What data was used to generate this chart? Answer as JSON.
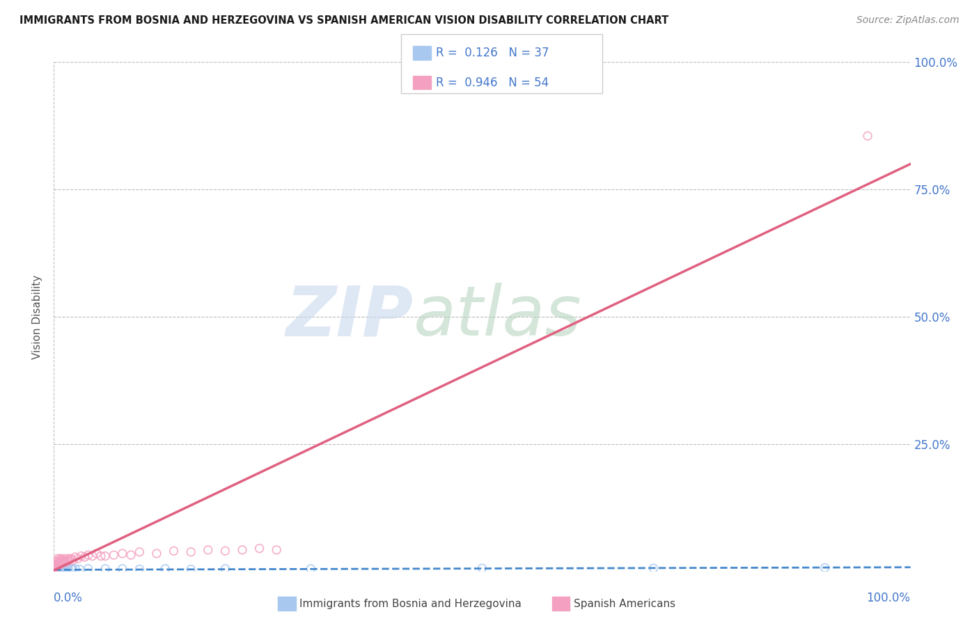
{
  "title": "IMMIGRANTS FROM BOSNIA AND HERZEGOVINA VS SPANISH AMERICAN VISION DISABILITY CORRELATION CHART",
  "source": "Source: ZipAtlas.com",
  "ylabel": "Vision Disability",
  "yticks": [
    0.0,
    0.25,
    0.5,
    0.75,
    1.0
  ],
  "ytick_labels": [
    "",
    "25.0%",
    "50.0%",
    "75.0%",
    "100.0%"
  ],
  "xlim": [
    0.0,
    1.0
  ],
  "ylim": [
    0.0,
    1.0
  ],
  "blue_scatter_x": [
    0.001,
    0.002,
    0.002,
    0.003,
    0.003,
    0.004,
    0.004,
    0.005,
    0.005,
    0.006,
    0.006,
    0.007,
    0.007,
    0.008,
    0.008,
    0.009,
    0.01,
    0.011,
    0.012,
    0.013,
    0.015,
    0.017,
    0.02,
    0.022,
    0.025,
    0.03,
    0.04,
    0.06,
    0.08,
    0.1,
    0.13,
    0.16,
    0.2,
    0.3,
    0.5,
    0.7,
    0.9
  ],
  "blue_scatter_y": [
    0.003,
    0.002,
    0.005,
    0.004,
    0.006,
    0.003,
    0.005,
    0.004,
    0.006,
    0.003,
    0.005,
    0.004,
    0.006,
    0.003,
    0.005,
    0.004,
    0.005,
    0.004,
    0.005,
    0.004,
    0.005,
    0.004,
    0.005,
    0.004,
    0.005,
    0.004,
    0.005,
    0.005,
    0.005,
    0.004,
    0.005,
    0.004,
    0.005,
    0.005,
    0.006,
    0.006,
    0.007
  ],
  "pink_scatter_x": [
    0.001,
    0.001,
    0.002,
    0.002,
    0.003,
    0.003,
    0.003,
    0.004,
    0.004,
    0.004,
    0.005,
    0.005,
    0.005,
    0.006,
    0.006,
    0.007,
    0.007,
    0.008,
    0.008,
    0.009,
    0.01,
    0.01,
    0.011,
    0.012,
    0.013,
    0.014,
    0.015,
    0.016,
    0.017,
    0.018,
    0.02,
    0.022,
    0.025,
    0.028,
    0.032,
    0.036,
    0.04,
    0.045,
    0.05,
    0.055,
    0.06,
    0.07,
    0.08,
    0.09,
    0.1,
    0.12,
    0.14,
    0.16,
    0.18,
    0.2,
    0.22,
    0.24,
    0.26,
    0.95
  ],
  "pink_scatter_y": [
    0.005,
    0.01,
    0.008,
    0.012,
    0.008,
    0.015,
    0.02,
    0.01,
    0.015,
    0.02,
    0.01,
    0.015,
    0.025,
    0.012,
    0.018,
    0.015,
    0.022,
    0.018,
    0.025,
    0.015,
    0.018,
    0.022,
    0.02,
    0.025,
    0.02,
    0.018,
    0.022,
    0.02,
    0.025,
    0.022,
    0.025,
    0.022,
    0.028,
    0.025,
    0.03,
    0.028,
    0.032,
    0.03,
    0.035,
    0.03,
    0.03,
    0.032,
    0.035,
    0.032,
    0.038,
    0.035,
    0.04,
    0.038,
    0.042,
    0.04,
    0.042,
    0.045,
    0.042,
    0.855
  ],
  "blue_line_x": [
    0.0,
    1.0
  ],
  "blue_line_y": [
    0.003,
    0.008
  ],
  "pink_line_x": [
    0.0,
    1.0
  ],
  "pink_line_y": [
    0.002,
    0.8
  ],
  "title_color": "#1a1a1a",
  "source_color": "#888888",
  "axis_color": "#4477cc",
  "scatter_blue_color": "#a8c8f0",
  "scatter_pink_color": "#f4a0c0",
  "line_blue_color": "#4488cc",
  "line_pink_color": "#e06080",
  "grid_color": "#bbbbbb",
  "watermark_zip_color": "#c8d8ee",
  "watermark_atlas_color": "#b8d4c0"
}
